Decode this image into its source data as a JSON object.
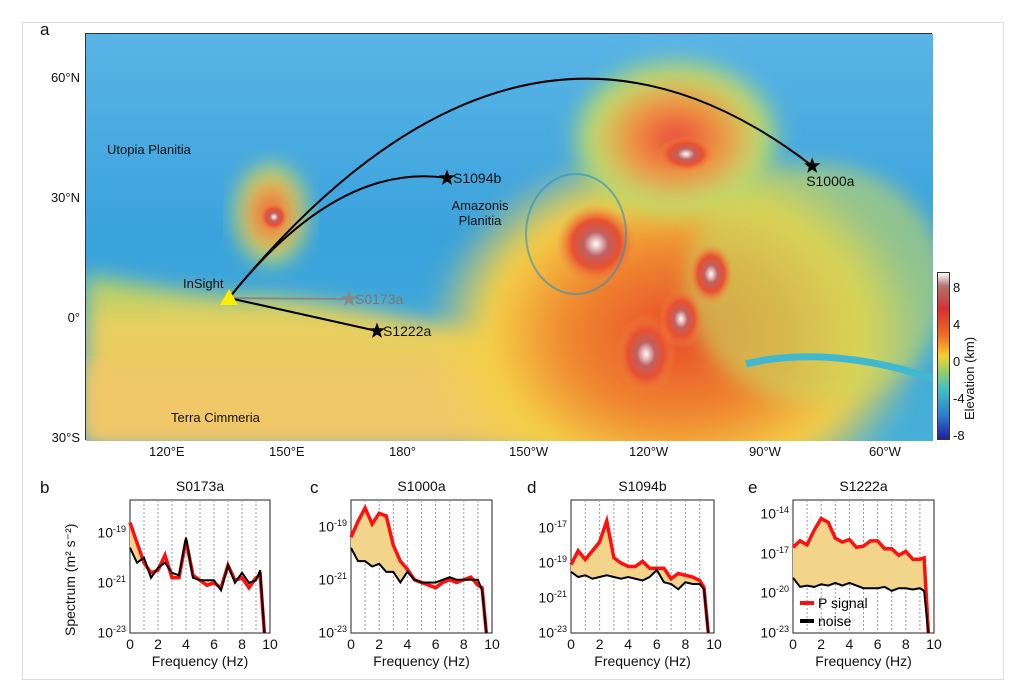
{
  "panel_labels": [
    "a",
    "b",
    "c",
    "d",
    "e"
  ],
  "map": {
    "lat_ticks": [
      {
        "label": "60°N",
        "lat": 60
      },
      {
        "label": "30°N",
        "lat": 30
      },
      {
        "label": "0°",
        "lat": 0
      },
      {
        "label": "30°S",
        "lat": -30
      }
    ],
    "lon_ticks": [
      {
        "label": "120°E",
        "lon": 120
      },
      {
        "label": "150°E",
        "lon": 150
      },
      {
        "label": "180°",
        "lon": 180
      },
      {
        "label": "150°W",
        "lon": 210
      },
      {
        "label": "120°W",
        "lon": 240
      },
      {
        "label": "90°W",
        "lon": 270
      },
      {
        "label": "60°W",
        "lon": 300
      }
    ],
    "regions": [
      {
        "label": "Utopia Planitia",
        "lat": 44,
        "lon": 105
      },
      {
        "label": "Amazonis Planitia",
        "lat": 30,
        "lon": 187
      },
      {
        "label": "Terra Cimmeria",
        "lat": -23,
        "lon": 121
      }
    ],
    "station": {
      "label": "InSight",
      "lat": 5,
      "lon": 135.5,
      "color": "#ffee00"
    },
    "events": [
      {
        "label": "S1094b",
        "lat": 35,
        "lon": 190,
        "color": "#000000",
        "arc": 0.35
      },
      {
        "label": "S1000a",
        "lat": 38,
        "lon": 281.3,
        "color": "#000000",
        "arc": 0.5
      },
      {
        "label": "S0173a",
        "lat": 4.75,
        "lon": 165.5,
        "color": "#888888",
        "arc": 0
      },
      {
        "label": "S1222a",
        "lat": -3.25,
        "lon": 172.5,
        "color": "#000000",
        "arc": 0
      }
    ],
    "colorbar": {
      "label": "Elevation (km)",
      "ticks": [
        "8",
        "4",
        "0",
        "-4",
        "-8"
      ]
    }
  },
  "legend": {
    "signal": "P signal",
    "noise": "noise",
    "signal_color": "#ff1010",
    "noise_color": "#000000",
    "fill_color": "#f2d58a"
  },
  "chart_data": [
    {
      "type": "line",
      "title": "S0173a",
      "xlabel": "Frequency (Hz)",
      "ylabel": "Spectrum (m² s⁻²)",
      "xlim": [
        0,
        10
      ],
      "ylim_log10": [
        -23,
        -17.7
      ],
      "xticks": [
        "0",
        "2",
        "4",
        "6",
        "8",
        "10"
      ],
      "yticks": [
        {
          "base": "10",
          "exp": "-19"
        },
        {
          "base": "10",
          "exp": "-21"
        },
        {
          "base": "10",
          "exp": "-23"
        }
      ],
      "x": [
        0,
        0.5,
        1,
        1.5,
        2,
        2.5,
        3,
        3.5,
        4,
        4.5,
        5,
        5.5,
        6,
        6.5,
        7,
        7.5,
        8,
        8.5,
        9,
        9.3,
        9.6
      ],
      "series": [
        {
          "name": "P signal",
          "log10": [
            -18.6,
            -19.4,
            -20.2,
            -20.6,
            -20.5,
            -19.9,
            -20.8,
            -20.8,
            -19.3,
            -20.7,
            -20.9,
            -21.1,
            -21.0,
            -21.2,
            -20.3,
            -20.9,
            -20.8,
            -21.2,
            -20.8,
            -20.7,
            -23
          ]
        },
        {
          "name": "noise",
          "log10": [
            -19.6,
            -20.2,
            -20.0,
            -20.8,
            -20.4,
            -20.2,
            -20.6,
            -20.7,
            -19.2,
            -20.8,
            -20.9,
            -20.9,
            -20.9,
            -21.3,
            -20.3,
            -21.0,
            -20.6,
            -21.0,
            -20.9,
            -20.5,
            -23
          ]
        }
      ]
    },
    {
      "type": "line",
      "title": "S1000a",
      "xlabel": "Frequency (Hz)",
      "xlim": [
        0,
        10
      ],
      "ylim_log10": [
        -23,
        -18
      ],
      "xticks": [
        "0",
        "2",
        "4",
        "6",
        "8",
        "10"
      ],
      "yticks": [
        {
          "base": "10",
          "exp": "-19"
        },
        {
          "base": "10",
          "exp": "-21"
        },
        {
          "base": "10",
          "exp": "-23"
        }
      ],
      "x": [
        0,
        0.5,
        1,
        1.5,
        2,
        2.5,
        3,
        3.5,
        4,
        4.5,
        5,
        5.5,
        6,
        6.5,
        7,
        7.5,
        8,
        8.5,
        9,
        9.3,
        9.6
      ],
      "series": [
        {
          "name": "P signal",
          "log10": [
            -19.4,
            -18.8,
            -18.3,
            -18.9,
            -18.5,
            -18.6,
            -19.7,
            -20.3,
            -20.6,
            -21.0,
            -21.1,
            -21.2,
            -21.3,
            -21.1,
            -21.0,
            -21.1,
            -21.0,
            -20.9,
            -21.2,
            -21.3,
            -23
          ]
        },
        {
          "name": "noise",
          "log10": [
            -19.8,
            -20.3,
            -20.3,
            -20.5,
            -20.4,
            -20.7,
            -20.7,
            -21.1,
            -20.7,
            -21.0,
            -21.1,
            -21.1,
            -21.1,
            -21.0,
            -20.9,
            -21.0,
            -21.0,
            -21.0,
            -21.0,
            -21.4,
            -23
          ]
        }
      ]
    },
    {
      "type": "line",
      "title": "S1094b",
      "xlabel": "Frequency (Hz)",
      "xlim": [
        0,
        10
      ],
      "ylim_log10": [
        -23,
        -15.4
      ],
      "xticks": [
        "0",
        "2",
        "4",
        "6",
        "8",
        "10"
      ],
      "yticks": [
        {
          "base": "10",
          "exp": "-17"
        },
        {
          "base": "10",
          "exp": "-19"
        },
        {
          "base": "10",
          "exp": "-21"
        },
        {
          "base": "10",
          "exp": "-23"
        }
      ],
      "x": [
        0,
        0.5,
        1,
        1.5,
        2,
        2.5,
        3,
        3.5,
        4,
        4.5,
        5,
        5.5,
        6,
        6.5,
        7,
        7.5,
        8,
        8.5,
        9,
        9.3,
        9.6
      ],
      "series": [
        {
          "name": "P signal",
          "log10": [
            -19.1,
            -18.3,
            -18.8,
            -18.3,
            -17.8,
            -16.6,
            -18.7,
            -19.0,
            -19.2,
            -19.2,
            -18.9,
            -19.3,
            -19.3,
            -19.3,
            -19.9,
            -19.6,
            -19.7,
            -19.8,
            -20.0,
            -20.4,
            -23
          ]
        },
        {
          "name": "noise",
          "log10": [
            -19.5,
            -19.8,
            -19.7,
            -19.9,
            -19.8,
            -19.7,
            -19.8,
            -19.9,
            -19.8,
            -19.9,
            -20.0,
            -19.8,
            -19.4,
            -20.1,
            -20.2,
            -20.5,
            -20.1,
            -20.2,
            -20.2,
            -20.5,
            -23
          ]
        }
      ]
    },
    {
      "type": "line",
      "title": "S1222a",
      "xlabel": "Frequency (Hz)",
      "xlim": [
        0,
        10
      ],
      "ylim_log10": [
        -23,
        -12.9
      ],
      "xticks": [
        "0",
        "2",
        "4",
        "6",
        "8",
        "10"
      ],
      "yticks": [
        {
          "base": "10",
          "exp": "-14"
        },
        {
          "base": "10",
          "exp": "-17"
        },
        {
          "base": "10",
          "exp": "-20"
        },
        {
          "base": "10",
          "exp": "-23"
        }
      ],
      "x": [
        0,
        0.5,
        1,
        1.5,
        2,
        2.5,
        3,
        3.5,
        4,
        4.5,
        5,
        5.5,
        6,
        6.5,
        7,
        7.5,
        8,
        8.5,
        9,
        9.3,
        9.6
      ],
      "series": [
        {
          "name": "P signal",
          "log10": [
            -16.5,
            -16.0,
            -16.3,
            -15.2,
            -14.3,
            -14.6,
            -15.8,
            -16.1,
            -15.9,
            -16.5,
            -16.4,
            -16.0,
            -16.0,
            -16.6,
            -16.6,
            -17.1,
            -16.8,
            -17.4,
            -17.4,
            -17.3,
            -23
          ]
        },
        {
          "name": "noise",
          "log10": [
            -18.8,
            -19.5,
            -19.4,
            -19.5,
            -19.3,
            -19.4,
            -19.2,
            -19.4,
            -19.2,
            -19.4,
            -19.6,
            -19.6,
            -19.6,
            -19.5,
            -19.8,
            -19.6,
            -19.6,
            -19.7,
            -19.6,
            -19.8,
            -23
          ]
        }
      ]
    }
  ]
}
